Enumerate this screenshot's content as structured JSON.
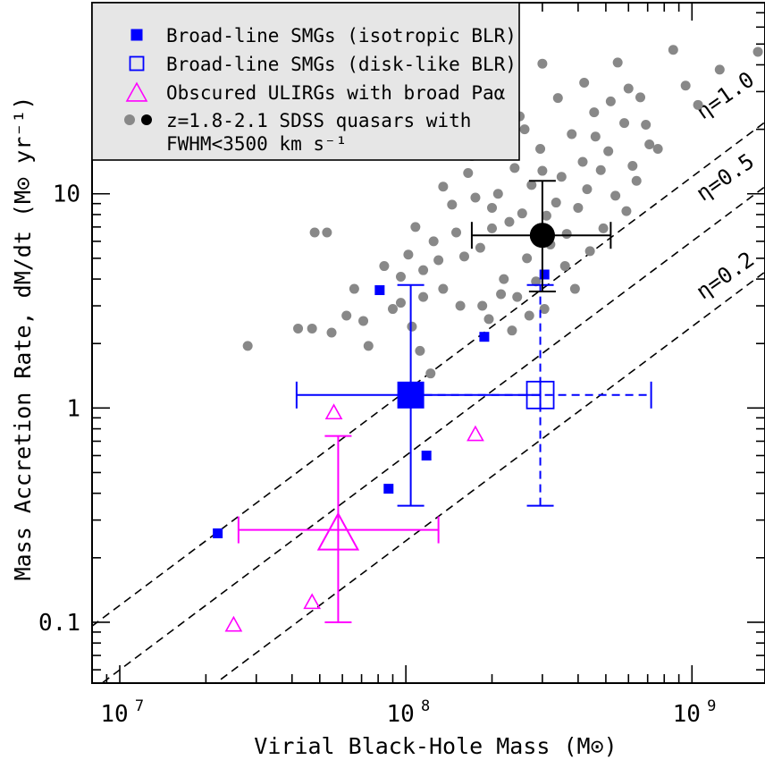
{
  "chart_data": {
    "type": "scatter",
    "xscale": "log",
    "yscale": "log",
    "xlim": [
      8000000.0,
      1800000000.0
    ],
    "ylim": [
      0.052,
      78
    ],
    "xlabel": "Virial Black-Hole Mass (M⊙)",
    "ylabel": "Mass Accretion Rate, dM/dt (M⊙ yr⁻¹)",
    "x_ticks": [
      {
        "value": 10000000.0,
        "base": "10",
        "exp": "7"
      },
      {
        "value": 100000000.0,
        "base": "10",
        "exp": "8"
      },
      {
        "value": 1000000000.0,
        "base": "10",
        "exp": "9"
      }
    ],
    "y_ticks": [
      {
        "value": 0.1,
        "label": "0.1"
      },
      {
        "value": 1,
        "label": "1"
      },
      {
        "value": 10,
        "label": "10"
      }
    ],
    "legend": {
      "position": "top-left",
      "entries": [
        {
          "marker": "filled-square",
          "color": "#0000ff",
          "label": "Broad-line SMGs (isotropic BLR)"
        },
        {
          "marker": "open-square",
          "color": "#0000ff",
          "label": "Broad-line SMGs (disk-like BLR)"
        },
        {
          "marker": "open-triangle",
          "color": "#ff00ff",
          "label": "Obscured ULIRGs with broad Paα"
        },
        {
          "marker": "grey-black-circles",
          "color": "#888888",
          "label": "z=1.8-2.1 SDSS quasars with",
          "label2": "FWHM<3500 km s⁻¹"
        }
      ]
    },
    "efficiency_lines": [
      {
        "eta": 1.0,
        "label": "η=1.0",
        "mdot_at_1e8": 1.2
      },
      {
        "eta": 0.5,
        "label": "η=0.5",
        "mdot_at_1e8": 0.6
      },
      {
        "eta": 0.2,
        "label": "η=0.2",
        "mdot_at_1e8": 0.24
      }
    ],
    "series": [
      {
        "name": "Broad-line SMGs (isotropic BLR)",
        "marker": "filled-square",
        "color": "#0000ff",
        "points": [
          [
            22000000.0,
            0.26
          ],
          [
            81000000.0,
            3.55
          ],
          [
            87000000.0,
            0.42
          ],
          [
            118000000.0,
            0.6
          ],
          [
            188000000.0,
            2.15
          ],
          [
            305000000.0,
            4.2
          ]
        ]
      },
      {
        "name": "Broad-line SMGs (disk-like BLR)",
        "marker": "open-square",
        "color": "#0000ff",
        "points": []
      },
      {
        "name": "Obscured ULIRGs with broad Paα",
        "marker": "open-triangle",
        "color": "#ff00ff",
        "points": [
          [
            25000000.0,
            0.098
          ],
          [
            47000000.0,
            0.125
          ],
          [
            56000000.0,
            0.96
          ],
          [
            175000000.0,
            0.76
          ]
        ]
      },
      {
        "name": "z=1.8-2.1 SDSS quasars with FWHM<3500 km s⁻¹",
        "marker": "grey-circle",
        "color": "#888888",
        "points": [
          [
            28000000.0,
            1.95
          ],
          [
            48000000.0,
            6.6
          ],
          [
            53000000.0,
            6.6
          ],
          [
            42000000.0,
            2.35
          ],
          [
            47000000.0,
            2.35
          ],
          [
            55000000.0,
            2.25
          ],
          [
            62000000.0,
            2.7
          ],
          [
            66000000.0,
            3.6
          ],
          [
            71000000.0,
            2.55
          ],
          [
            74000000.0,
            1.95
          ],
          [
            84000000.0,
            4.6
          ],
          [
            90000000.0,
            2.9
          ],
          [
            96000000.0,
            3.1
          ],
          [
            105000000.0,
            2.4
          ],
          [
            112000000.0,
            1.85
          ],
          [
            122000000.0,
            1.45
          ],
          [
            102000000.0,
            5.2
          ],
          [
            108000000.0,
            7.0
          ],
          [
            115000000.0,
            4.4
          ],
          [
            125000000.0,
            6.0
          ],
          [
            135000000.0,
            3.6
          ],
          [
            145000000.0,
            8.9
          ],
          [
            155000000.0,
            3.0
          ],
          [
            165000000.0,
            12.5
          ],
          [
            175000000.0,
            9.6
          ],
          [
            160000000.0,
            5.1
          ],
          [
            182000000.0,
            5.6
          ],
          [
            195000000.0,
            2.6
          ],
          [
            200000000.0,
            6.9
          ],
          [
            210000000.0,
            10.0
          ],
          [
            220000000.0,
            4.0
          ],
          [
            230000000.0,
            7.4
          ],
          [
            240000000.0,
            13.2
          ],
          [
            245000000.0,
            3.3
          ],
          [
            255000000.0,
            8.1
          ],
          [
            265000000.0,
            5.0
          ],
          [
            275000000.0,
            11.0
          ],
          [
            285000000.0,
            3.9
          ],
          [
            295000000.0,
            16.2
          ],
          [
            310000000.0,
            7.9
          ],
          [
            320000000.0,
            5.8
          ],
          [
            335000000.0,
            9.1
          ],
          [
            350000000.0,
            12.0
          ],
          [
            365000000.0,
            6.5
          ],
          [
            380000000.0,
            19.0
          ],
          [
            400000000.0,
            8.6
          ],
          [
            415000000.0,
            14.1
          ],
          [
            430000000.0,
            10.5
          ],
          [
            455000000.0,
            24.0
          ],
          [
            480000000.0,
            12.9
          ],
          [
            510000000.0,
            15.8
          ],
          [
            540000000.0,
            9.8
          ],
          [
            580000000.0,
            21.4
          ],
          [
            620000000.0,
            13.5
          ],
          [
            660000000.0,
            28.2
          ],
          [
            710000000.0,
            17.0
          ],
          [
            760000000.0,
            16.2
          ],
          [
            550000000.0,
            41.0
          ],
          [
            300000000.0,
            40.5
          ],
          [
            860000000.0,
            47.0
          ],
          [
            950000000.0,
            32.0
          ],
          [
            1050000000.0,
            26.0
          ],
          [
            1250000000.0,
            38.0
          ],
          [
            1700000000.0,
            46.0
          ],
          [
            690000000.0,
            21.0
          ],
          [
            260000000.0,
            20.0
          ],
          [
            170000000.0,
            15.0
          ],
          [
            360000000.0,
            4.6
          ],
          [
            490000000.0,
            6.9
          ],
          [
            440000000.0,
            5.4
          ],
          [
            390000000.0,
            3.6
          ],
          [
            215000000.0,
            3.4
          ],
          [
            135000000.0,
            10.8
          ],
          [
            195000000.0,
            16.5
          ],
          [
            250000000.0,
            23.0
          ],
          [
            340000000.0,
            28.0
          ],
          [
            420000000.0,
            33.0
          ],
          [
            520000000.0,
            27.0
          ],
          [
            600000000.0,
            31.0
          ],
          [
            305000000.0,
            2.9
          ],
          [
            270000000.0,
            2.7
          ],
          [
            235000000.0,
            2.3
          ],
          [
            590000000.0,
            8.3
          ],
          [
            640000000.0,
            11.5
          ],
          [
            460000000.0,
            18.5
          ],
          [
            300000000.0,
            12.8
          ],
          [
            200000000.0,
            8.6
          ],
          [
            150000000.0,
            6.6
          ],
          [
            130000000.0,
            4.9
          ],
          [
            115000000.0,
            3.3
          ],
          [
            96000000.0,
            4.1
          ],
          [
            185000000.0,
            3.0
          ]
        ]
      },
      {
        "name": "SDSS quasar median",
        "marker": "black-circle",
        "color": "#000000",
        "points": [
          [
            300000000.0,
            6.4
          ]
        ]
      }
    ],
    "means": [
      {
        "name": "isotropic-mean",
        "style": "filled-square",
        "color": "#0000ff",
        "x": 104000000.0,
        "y": 1.15,
        "xerr": [
          41500000.0,
          295000000.0
        ],
        "yerr": [
          0.35,
          3.75
        ],
        "dashed": false
      },
      {
        "name": "disk-mean",
        "style": "open-square",
        "color": "#0000ff",
        "x": 295000000.0,
        "y": 1.15,
        "xerr": [
          104000000.0,
          720000000.0
        ],
        "yerr": [
          0.35,
          3.75
        ],
        "dashed": true
      },
      {
        "name": "ulirg-mean",
        "style": "open-triangle",
        "color": "#ff00ff",
        "x": 58000000.0,
        "y": 0.27,
        "xerr": [
          26000000.0,
          130000000.0
        ],
        "yerr": [
          0.1,
          0.74
        ],
        "dashed": false
      },
      {
        "name": "quasar-mean",
        "style": "black-circle",
        "color": "#000000",
        "x": 300000000.0,
        "y": 6.4,
        "xerr": [
          170000000.0,
          520000000.0
        ],
        "yerr": [
          3.5,
          11.5
        ],
        "dashed": false
      }
    ]
  }
}
